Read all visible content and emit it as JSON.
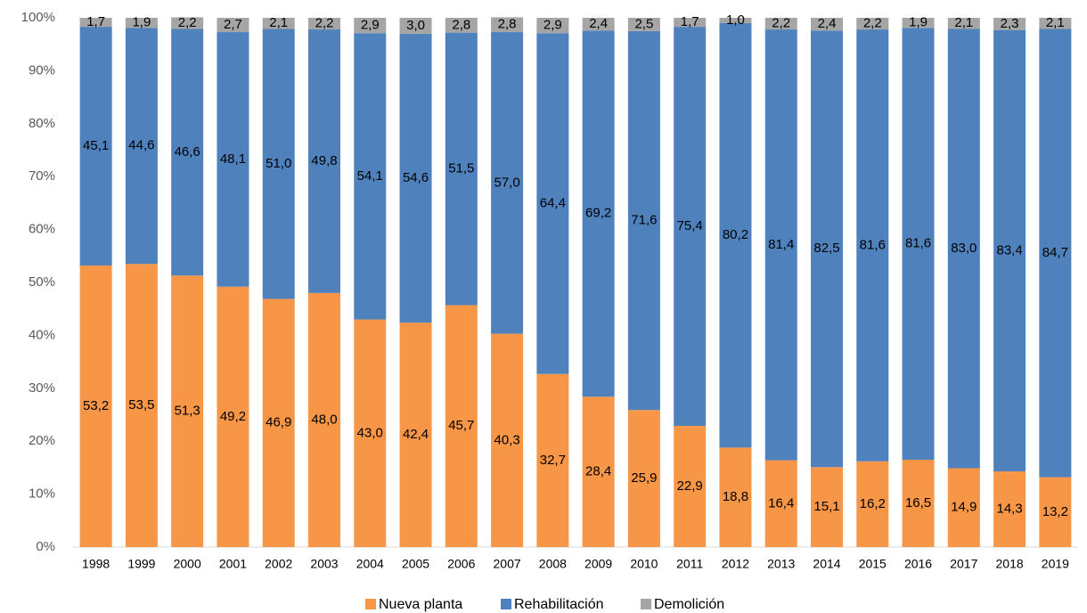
{
  "chart_data": {
    "type": "stacked_bar",
    "categories": [
      "1998",
      "1999",
      "2000",
      "2001",
      "2002",
      "2003",
      "2004",
      "2005",
      "2006",
      "2007",
      "2008",
      "2009",
      "2010",
      "2011",
      "2012",
      "2013",
      "2014",
      "2015",
      "2016",
      "2017",
      "2018",
      "2019"
    ],
    "series": [
      {
        "name": "Nueva planta",
        "color": "#F79646",
        "values": [
          53.2,
          53.5,
          51.3,
          49.2,
          46.9,
          48.0,
          43.0,
          42.4,
          45.7,
          40.3,
          32.7,
          28.4,
          25.9,
          22.9,
          18.8,
          16.4,
          15.1,
          16.2,
          16.5,
          14.9,
          14.3,
          13.2
        ],
        "value_labels": [
          "53,2",
          "53,5",
          "51,3",
          "49,2",
          "46,9",
          "48,0",
          "43,0",
          "42,4",
          "45,7",
          "40,3",
          "32,7",
          "28,4",
          "25,9",
          "22,9",
          "18,8",
          "16,4",
          "15,1",
          "16,2",
          "16,5",
          "14,9",
          "14,3",
          "13,2"
        ]
      },
      {
        "name": "Rehabilitación",
        "color": "#4F81BD",
        "values": [
          45.1,
          44.6,
          46.6,
          48.1,
          51.0,
          49.8,
          54.1,
          54.6,
          51.5,
          57.0,
          64.4,
          69.2,
          71.6,
          75.4,
          80.2,
          81.4,
          82.5,
          81.6,
          81.6,
          83.0,
          83.4,
          84.7
        ],
        "value_labels": [
          "45,1",
          "44,6",
          "46,6",
          "48,1",
          "51,0",
          "49,8",
          "54,1",
          "54,6",
          "51,5",
          "57,0",
          "64,4",
          "69,2",
          "71,6",
          "75,4",
          "80,2",
          "81,4",
          "82,5",
          "81,6",
          "81,6",
          "83,0",
          "83,4",
          "84,7"
        ]
      },
      {
        "name": "Demolición",
        "color": "#A5A5A5",
        "values": [
          1.7,
          1.9,
          2.2,
          2.7,
          2.1,
          2.2,
          2.9,
          3.0,
          2.8,
          2.8,
          2.9,
          2.4,
          2.5,
          1.7,
          1.0,
          2.2,
          2.4,
          2.2,
          1.9,
          2.1,
          2.3,
          2.1
        ],
        "value_labels": [
          "1,7",
          "1,9",
          "2,2",
          "2,7",
          "2,1",
          "2,2",
          "2,9",
          "3,0",
          "2,8",
          "2,8",
          "2,9",
          "2,4",
          "2,5",
          "1,7",
          "1,0",
          "2,2",
          "2,4",
          "2,2",
          "1,9",
          "2,1",
          "2,3",
          "2,1"
        ]
      }
    ],
    "ylim": [
      0,
      100
    ],
    "yticks": [
      {
        "value": 0,
        "label": "0%"
      },
      {
        "value": 10,
        "label": "10%"
      },
      {
        "value": 20,
        "label": "20%"
      },
      {
        "value": 30,
        "label": "30%"
      },
      {
        "value": 40,
        "label": "40%"
      },
      {
        "value": 50,
        "label": "50%"
      },
      {
        "value": 60,
        "label": "60%"
      },
      {
        "value": 70,
        "label": "70%"
      },
      {
        "value": 80,
        "label": "80%"
      },
      {
        "value": 90,
        "label": "90%"
      },
      {
        "value": 100,
        "label": "100%"
      }
    ],
    "legend": "bottom"
  }
}
